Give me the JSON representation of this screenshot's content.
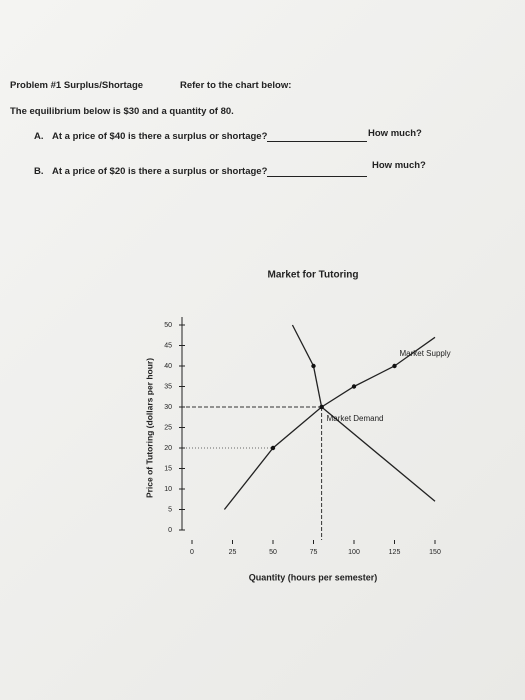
{
  "header": {
    "problem": "Problem #1  Surplus/Shortage",
    "refer": "Refer to the chart below:"
  },
  "intro": "The equilibrium below is $30 and a quantity of 80.",
  "questions": [
    {
      "label": "A.",
      "text": "At a price of $40 is there a surplus or shortage?",
      "how": "How much?"
    },
    {
      "label": "B.",
      "text": "At a price of $20 is there a surplus or shortage?",
      "how": "How much?"
    }
  ],
  "chart": {
    "title": "Market for Tutoring",
    "y_label": "Price of Tutoring (dollars per hour)",
    "x_label": "Quantity (hours per semester)",
    "xlim": [
      0,
      150
    ],
    "ylim": [
      0,
      50
    ],
    "xticks": [
      0,
      25,
      50,
      75,
      100,
      125,
      150
    ],
    "yticks": [
      0,
      5,
      10,
      15,
      20,
      25,
      30,
      35,
      40,
      45,
      50
    ],
    "supply": {
      "name": "Market Supply",
      "color": "#222",
      "x": [
        20,
        50,
        80,
        100,
        125,
        150
      ],
      "y": [
        5,
        20,
        30,
        35,
        40,
        47
      ]
    },
    "demand": {
      "name": "Market Demand",
      "color": "#222",
      "x": [
        62,
        75,
        80,
        150
      ],
      "y": [
        50,
        40,
        30,
        7
      ]
    }
  }
}
